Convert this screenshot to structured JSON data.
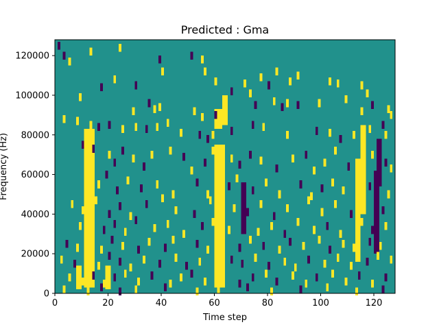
{
  "chart_data": {
    "type": "heatmap",
    "title": "Predicted : Gma",
    "xlabel": "Time step",
    "ylabel": "Frequency (Hz)",
    "xlim": [
      0,
      128
    ],
    "ylim": [
      0,
      128000
    ],
    "x_ticks": [
      0,
      20,
      40,
      60,
      80,
      100,
      120
    ],
    "y_ticks": [
      0,
      20000,
      40000,
      60000,
      80000,
      100000,
      120000
    ],
    "x_tick_labels": [
      "0",
      "20",
      "40",
      "60",
      "80",
      "100",
      "120"
    ],
    "y_tick_labels": [
      "0",
      "20000",
      "40000",
      "60000",
      "80000",
      "100000",
      "120000"
    ],
    "n_time_steps": 128,
    "n_frequency_bins": 128,
    "colormap": "viridis",
    "value_levels": [
      -1,
      0,
      1
    ],
    "colors": {
      "low": "#440154",
      "mid": "#21918c",
      "high": "#fde725",
      "axis": "#000000",
      "background": "#ffffff"
    },
    "background_value": 0,
    "regions": [
      {
        "t": [
          11,
          15
        ],
        "f": [
          3000,
          83000
        ],
        "value": 1
      },
      {
        "t": [
          60,
          64
        ],
        "f": [
          3000,
          75000
        ],
        "value": 1
      },
      {
        "t": [
          60,
          63
        ],
        "f": [
          83000,
          93000
        ],
        "value": 1
      },
      {
        "t": [
          63,
          65
        ],
        "f": [
          85000,
          100000
        ],
        "value": 1
      },
      {
        "t": [
          113,
          115
        ],
        "f": [
          16000,
          68000
        ],
        "value": 1
      },
      {
        "t": [
          115,
          117
        ],
        "f": [
          40000,
          85000
        ],
        "value": 1
      },
      {
        "t": [
          70,
          72
        ],
        "f": [
          30000,
          56000
        ],
        "value": -1
      },
      {
        "t": [
          120,
          122
        ],
        "f": [
          20000,
          62000
        ],
        "value": -1
      },
      {
        "t": [
          121,
          123
        ],
        "f": [
          54000,
          78000
        ],
        "value": -1
      },
      {
        "t": [
          8,
          10
        ],
        "f": [
          2000,
          14000
        ],
        "value": 1
      },
      {
        "t": [
          19,
          21
        ],
        "f": [
          2000,
          14000
        ],
        "value": 1
      }
    ],
    "cells": [
      [
        1,
        125000,
        -1
      ],
      [
        3,
        120000,
        -1
      ],
      [
        5,
        117000,
        1
      ],
      [
        13,
        122000,
        1
      ],
      [
        24,
        124000,
        1
      ],
      [
        39,
        118000,
        -1
      ],
      [
        40,
        112000,
        1
      ],
      [
        51,
        120000,
        -1
      ],
      [
        55,
        118000,
        1
      ],
      [
        56,
        112000,
        1
      ],
      [
        60,
        107000,
        1
      ],
      [
        71,
        106000,
        1
      ],
      [
        77,
        109000,
        1
      ],
      [
        80,
        105000,
        -1
      ],
      [
        83,
        112000,
        1
      ],
      [
        88,
        107000,
        1
      ],
      [
        91,
        110000,
        1
      ],
      [
        103,
        107000,
        1
      ],
      [
        106,
        106000,
        1
      ],
      [
        115,
        105000,
        1
      ],
      [
        117,
        101000,
        1
      ],
      [
        9,
        99000,
        1
      ],
      [
        17,
        104000,
        -1
      ],
      [
        22,
        108000,
        1
      ],
      [
        30,
        105000,
        -1
      ],
      [
        35,
        96000,
        -1
      ],
      [
        29,
        92000,
        1
      ],
      [
        37,
        93000,
        1
      ],
      [
        39,
        94000,
        1
      ],
      [
        52,
        92000,
        1
      ],
      [
        55,
        89000,
        1
      ],
      [
        60,
        90000,
        -1
      ],
      [
        66,
        102000,
        -1
      ],
      [
        73,
        101000,
        1
      ],
      [
        75,
        95000,
        -1
      ],
      [
        82,
        97000,
        1
      ],
      [
        85,
        94000,
        -1
      ],
      [
        87,
        96000,
        1
      ],
      [
        91,
        95000,
        -1
      ],
      [
        99,
        96000,
        1
      ],
      [
        109,
        98000,
        1
      ],
      [
        115,
        92000,
        1
      ],
      [
        119,
        95000,
        -1
      ],
      [
        125,
        93000,
        1
      ],
      [
        126,
        90000,
        1
      ],
      [
        3,
        88000,
        1
      ],
      [
        8,
        87000,
        1
      ],
      [
        13,
        85000,
        1
      ],
      [
        16,
        84000,
        -1
      ],
      [
        20,
        85000,
        -1
      ],
      [
        25,
        83000,
        1
      ],
      [
        30,
        84000,
        1
      ],
      [
        34,
        83000,
        -1
      ],
      [
        38,
        84000,
        1
      ],
      [
        42,
        86000,
        1
      ],
      [
        47,
        81000,
        1
      ],
      [
        54,
        80000,
        -1
      ],
      [
        57,
        78000,
        -1
      ],
      [
        59,
        80000,
        1
      ],
      [
        66,
        82000,
        -1
      ],
      [
        74,
        85000,
        -1
      ],
      [
        78,
        84000,
        1
      ],
      [
        87,
        80000,
        1
      ],
      [
        98,
        82000,
        -1
      ],
      [
        103,
        81000,
        1
      ],
      [
        107,
        78000,
        -1
      ],
      [
        112,
        80000,
        1
      ],
      [
        118,
        83000,
        1
      ],
      [
        123,
        85000,
        -1
      ],
      [
        124,
        80000,
        1
      ],
      [
        10,
        75000,
        -1
      ],
      [
        14,
        73000,
        -1
      ],
      [
        20,
        70000,
        1
      ],
      [
        22,
        66000,
        -1
      ],
      [
        25,
        72000,
        -1
      ],
      [
        29,
        68000,
        1
      ],
      [
        33,
        64000,
        -1
      ],
      [
        36,
        70000,
        1
      ],
      [
        43,
        72000,
        1
      ],
      [
        48,
        69000,
        -1
      ],
      [
        51,
        62000,
        1
      ],
      [
        56,
        66000,
        -1
      ],
      [
        59,
        72000,
        1
      ],
      [
        66,
        68000,
        1
      ],
      [
        69,
        65000,
        -1
      ],
      [
        73,
        70000,
        -1
      ],
      [
        77,
        67000,
        1
      ],
      [
        83,
        63000,
        -1
      ],
      [
        89,
        68000,
        1
      ],
      [
        94,
        70000,
        -1
      ],
      [
        97,
        62000,
        1
      ],
      [
        101,
        66000,
        1
      ],
      [
        105,
        72000,
        1
      ],
      [
        110,
        64000,
        -1
      ],
      [
        119,
        70000,
        1
      ],
      [
        124,
        66000,
        -1
      ],
      [
        126,
        63000,
        1
      ],
      [
        12,
        58000,
        1
      ],
      [
        16,
        55000,
        1
      ],
      [
        19,
        60000,
        -1
      ],
      [
        23,
        52000,
        -1
      ],
      [
        27,
        57000,
        1
      ],
      [
        32,
        53000,
        -1
      ],
      [
        38,
        55000,
        1
      ],
      [
        44,
        50000,
        1
      ],
      [
        53,
        56000,
        -1
      ],
      [
        57,
        50000,
        1
      ],
      [
        65,
        54000,
        -1
      ],
      [
        68,
        58000,
        1
      ],
      [
        74,
        52000,
        -1
      ],
      [
        79,
        56000,
        1
      ],
      [
        84,
        50000,
        1
      ],
      [
        92,
        55000,
        -1
      ],
      [
        96,
        49000,
        1
      ],
      [
        100,
        53000,
        -1
      ],
      [
        104,
        56000,
        1
      ],
      [
        108,
        52000,
        1
      ],
      [
        114,
        58000,
        1
      ],
      [
        118,
        54000,
        -1
      ],
      [
        125,
        50000,
        1
      ],
      [
        6,
        45000,
        1
      ],
      [
        10,
        42000,
        1
      ],
      [
        15,
        47000,
        1
      ],
      [
        20,
        40000,
        -1
      ],
      [
        24,
        44000,
        -1
      ],
      [
        28,
        39000,
        1
      ],
      [
        34,
        45000,
        -1
      ],
      [
        40,
        48000,
        1
      ],
      [
        45,
        42000,
        1
      ],
      [
        52,
        40000,
        -1
      ],
      [
        58,
        47000,
        1
      ],
      [
        67,
        43000,
        1
      ],
      [
        72,
        41000,
        -1
      ],
      [
        77,
        45000,
        1
      ],
      [
        82,
        39000,
        -1
      ],
      [
        87,
        43000,
        1
      ],
      [
        95,
        47000,
        1
      ],
      [
        100,
        41000,
        1
      ],
      [
        105,
        45000,
        1
      ],
      [
        111,
        40000,
        -1
      ],
      [
        116,
        44000,
        1
      ],
      [
        123,
        42000,
        -1
      ],
      [
        9,
        34000,
        1
      ],
      [
        13,
        36000,
        1
      ],
      [
        18,
        32000,
        -1
      ],
      [
        22,
        35000,
        -1
      ],
      [
        26,
        31000,
        1
      ],
      [
        30,
        37000,
        -1
      ],
      [
        37,
        33000,
        1
      ],
      [
        42,
        35000,
        1
      ],
      [
        48,
        30000,
        1
      ],
      [
        55,
        34000,
        -1
      ],
      [
        59,
        36000,
        1
      ],
      [
        65,
        32000,
        1
      ],
      [
        71,
        35000,
        -1
      ],
      [
        76,
        31000,
        1
      ],
      [
        81,
        34000,
        1
      ],
      [
        86,
        30000,
        -1
      ],
      [
        91,
        36000,
        1
      ],
      [
        97,
        32000,
        1
      ],
      [
        102,
        34000,
        -1
      ],
      [
        107,
        30000,
        1
      ],
      [
        115,
        36000,
        1
      ],
      [
        119,
        32000,
        -1
      ],
      [
        124,
        34000,
        1
      ],
      [
        4,
        25000,
        -1
      ],
      [
        8,
        23000,
        1
      ],
      [
        12,
        26000,
        1
      ],
      [
        17,
        22000,
        1
      ],
      [
        21,
        27000,
        -1
      ],
      [
        25,
        24000,
        1
      ],
      [
        31,
        22000,
        -1
      ],
      [
        35,
        26000,
        1
      ],
      [
        41,
        23000,
        -1
      ],
      [
        44,
        27000,
        1
      ],
      [
        53,
        25000,
        -1
      ],
      [
        57,
        22000,
        1
      ],
      [
        62,
        26000,
        1
      ],
      [
        69,
        23000,
        -1
      ],
      [
        73,
        27000,
        1
      ],
      [
        78,
        24000,
        -1
      ],
      [
        84,
        22000,
        1
      ],
      [
        88,
        26000,
        -1
      ],
      [
        93,
        24000,
        1
      ],
      [
        99,
        27000,
        1
      ],
      [
        103,
        22000,
        -1
      ],
      [
        108,
        25000,
        1
      ],
      [
        112,
        23000,
        1
      ],
      [
        118,
        26000,
        -1
      ],
      [
        122,
        24000,
        1
      ],
      [
        2,
        17000,
        1
      ],
      [
        7,
        15000,
        -1
      ],
      [
        11,
        18000,
        1
      ],
      [
        16,
        14000,
        1
      ],
      [
        20,
        19000,
        -1
      ],
      [
        24,
        16000,
        -1
      ],
      [
        28,
        13000,
        1
      ],
      [
        33,
        17000,
        1
      ],
      [
        39,
        15000,
        -1
      ],
      [
        45,
        18000,
        1
      ],
      [
        49,
        14000,
        -1
      ],
      [
        54,
        16000,
        1
      ],
      [
        60,
        13000,
        1
      ],
      [
        66,
        17000,
        -1
      ],
      [
        70,
        15000,
        -1
      ],
      [
        75,
        18000,
        1
      ],
      [
        80,
        14000,
        -1
      ],
      [
        86,
        16000,
        1
      ],
      [
        90,
        13000,
        1
      ],
      [
        95,
        17000,
        -1
      ],
      [
        101,
        15000,
        1
      ],
      [
        106,
        18000,
        1
      ],
      [
        111,
        14000,
        1
      ],
      [
        117,
        16000,
        -1
      ],
      [
        121,
        19000,
        1
      ],
      [
        126,
        17000,
        1
      ],
      [
        5,
        8000,
        1
      ],
      [
        10,
        6000,
        1
      ],
      [
        14,
        9000,
        -1
      ],
      [
        18,
        5000,
        1
      ],
      [
        22,
        8000,
        -1
      ],
      [
        26,
        10000,
        1
      ],
      [
        31,
        6000,
        1
      ],
      [
        36,
        9000,
        -1
      ],
      [
        43,
        5000,
        1
      ],
      [
        47,
        8000,
        1
      ],
      [
        51,
        10000,
        -1
      ],
      [
        56,
        6000,
        1
      ],
      [
        63,
        9000,
        1
      ],
      [
        69,
        5000,
        -1
      ],
      [
        74,
        8000,
        -1
      ],
      [
        79,
        10000,
        1
      ],
      [
        83,
        6000,
        -1
      ],
      [
        89,
        9000,
        1
      ],
      [
        94,
        5000,
        1
      ],
      [
        98,
        8000,
        -1
      ],
      [
        104,
        10000,
        1
      ],
      [
        109,
        6000,
        1
      ],
      [
        114,
        9000,
        -1
      ],
      [
        119,
        5000,
        1
      ],
      [
        124,
        8000,
        -1
      ],
      [
        3,
        2000,
        1
      ],
      [
        12,
        1000,
        1
      ],
      [
        17,
        3000,
        -1
      ],
      [
        24,
        1000,
        -1
      ],
      [
        30,
        2000,
        1
      ],
      [
        41,
        3000,
        -1
      ],
      [
        53,
        1000,
        1
      ],
      [
        61,
        2000,
        1
      ],
      [
        72,
        3000,
        -1
      ],
      [
        81,
        1000,
        1
      ],
      [
        92,
        2000,
        -1
      ],
      [
        102,
        3000,
        1
      ],
      [
        113,
        1000,
        1
      ],
      [
        123,
        2000,
        -1
      ]
    ]
  }
}
